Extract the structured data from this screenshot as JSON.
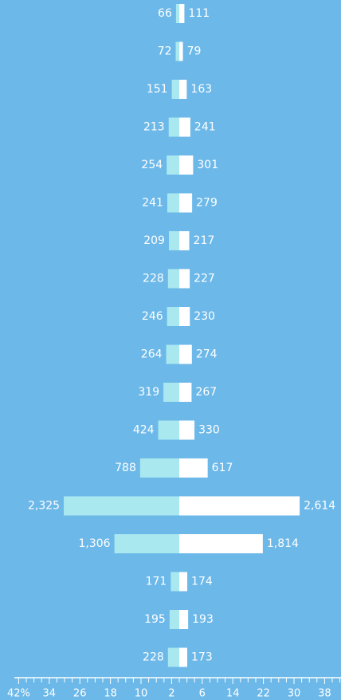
{
  "chart_data": {
    "type": "pyramid",
    "series": [
      {
        "color": "#a9e8ee",
        "values": [
          66,
          72,
          151,
          213,
          254,
          241,
          209,
          228,
          246,
          264,
          319,
          424,
          788,
          2325,
          1306,
          171,
          195,
          228
        ],
        "value_labels": [
          "66",
          "72",
          "151",
          "213",
          "254",
          "241",
          "209",
          "228",
          "246",
          "264",
          "319",
          "424",
          "788",
          "2,325",
          "1,306",
          "171",
          "195",
          "228"
        ]
      },
      {
        "color": "#ffffff",
        "values": [
          111,
          79,
          163,
          241,
          301,
          279,
          217,
          227,
          230,
          274,
          267,
          330,
          617,
          2614,
          1814,
          174,
          193,
          173
        ],
        "value_labels": [
          "111",
          "79",
          "163",
          "241",
          "301",
          "279",
          "217",
          "227",
          "230",
          "274",
          "267",
          "330",
          "617",
          "2,614",
          "1,814",
          "174",
          "193",
          "173"
        ]
      }
    ],
    "xlim": [
      -43,
      42
    ],
    "xticks": [
      {
        "value": -42,
        "label": "42%"
      },
      {
        "value": -34,
        "label": "34"
      },
      {
        "value": -26,
        "label": "26"
      },
      {
        "value": -18,
        "label": "18"
      },
      {
        "value": -10,
        "label": "10"
      },
      {
        "value": -2,
        "label": "2"
      },
      {
        "value": 6,
        "label": "6"
      },
      {
        "value": 14,
        "label": "14"
      },
      {
        "value": 22,
        "label": "22"
      },
      {
        "value": 30,
        "label": "30"
      },
      {
        "value": 38,
        "label": "38"
      }
    ],
    "xticks_minor": [
      -40,
      -38,
      -36,
      -32,
      -30,
      -28,
      -24,
      -22,
      -20,
      -16,
      -14,
      -12,
      -8,
      -6,
      -4,
      0,
      2,
      4,
      8,
      10,
      12,
      16,
      18,
      20,
      24,
      26,
      28,
      32,
      34,
      36,
      40,
      42
    ]
  }
}
